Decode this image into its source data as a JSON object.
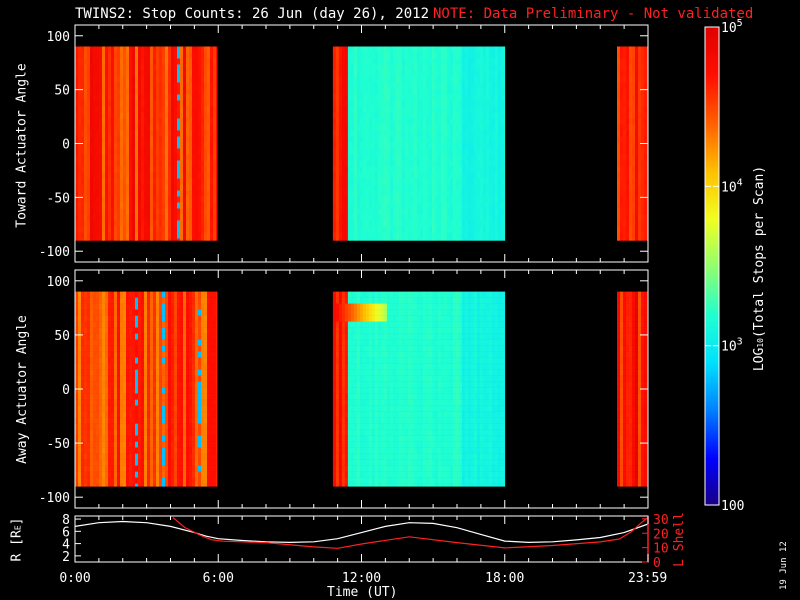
{
  "title": {
    "main": "TWINS2: Stop Counts: 26 Jun (day  26), 2012",
    "note": "NOTE: Data Preliminary - Not validated",
    "note_color": "#ff2020"
  },
  "date_stamp": "19 Jun 12",
  "colors": {
    "background": "#000000",
    "axes": "#ffffff",
    "lshell": "#ff2020",
    "r_line": "#ffffff"
  },
  "chart_data": [
    {
      "type": "heatmap",
      "name": "toward",
      "ylabel": "Toward Actuator Angle",
      "ylim": [
        -110,
        110
      ],
      "yticks": [
        100,
        50,
        0,
        -50,
        -100
      ],
      "data_ylim": [
        -90,
        90
      ],
      "xlim": [
        0,
        24
      ],
      "gaps": [
        [
          5.95,
          10.8
        ],
        [
          18.0,
          22.7
        ]
      ],
      "segments": [
        {
          "start": 0.0,
          "end": 5.95,
          "level": "high",
          "log_counts_approx": 4.6
        },
        {
          "start": 10.8,
          "end": 18.0,
          "level": "moderate",
          "log_counts_approx": 3.2
        },
        {
          "start": 22.7,
          "end": 24.0,
          "level": "high",
          "log_counts_approx": 4.7
        }
      ]
    },
    {
      "type": "heatmap",
      "name": "away",
      "ylabel": "Away Actuator Angle",
      "ylim": [
        -110,
        110
      ],
      "yticks": [
        100,
        50,
        0,
        -50,
        -100
      ],
      "data_ylim": [
        -90,
        90
      ],
      "xlim": [
        0,
        24
      ],
      "gaps": [
        [
          5.95,
          10.8
        ],
        [
          18.0,
          22.7
        ]
      ],
      "segments": [
        {
          "start": 0.0,
          "end": 5.95,
          "level": "high",
          "log_counts_approx": 4.5
        },
        {
          "start": 10.8,
          "end": 18.0,
          "level": "moderate",
          "log_counts_approx": 3.2
        },
        {
          "start": 22.7,
          "end": 24.0,
          "level": "high",
          "log_counts_approx": 4.7
        }
      ]
    },
    {
      "type": "line",
      "name": "ephemeris",
      "xlabel": "Time (UT)",
      "xlim": [
        0,
        24
      ],
      "xticks": [
        0,
        6,
        12,
        18,
        23.983
      ],
      "xtick_labels": [
        "0:00",
        "6:00",
        "12:00",
        "18:00",
        "23:59"
      ],
      "ylabel_left": "R [RE]",
      "ylabel_left_base": "R [R",
      "ylabel_left_sub": "E",
      "ylabel_left_end": "]",
      "ylim_left": [
        1,
        8.5
      ],
      "yticks_left": [
        2,
        4,
        6,
        8
      ],
      "ylabel_right": "L Shell",
      "ylim_right": [
        0,
        32
      ],
      "yticks_right": [
        0,
        10,
        20,
        30
      ],
      "series": [
        {
          "name": "R",
          "axis": "left",
          "x": [
            0,
            1,
            2,
            3,
            4,
            5,
            5.5,
            6,
            7,
            8,
            9,
            10,
            11,
            12,
            13,
            14,
            15,
            16,
            17,
            18,
            19,
            20,
            21,
            22,
            23,
            24
          ],
          "y": [
            6.8,
            7.4,
            7.6,
            7.4,
            6.8,
            5.8,
            5.2,
            4.8,
            4.5,
            4.3,
            4.2,
            4.3,
            4.8,
            5.8,
            6.8,
            7.4,
            7.3,
            6.6,
            5.5,
            4.4,
            4.2,
            4.3,
            4.6,
            5.0,
            5.8,
            7.2
          ]
        },
        {
          "name": "L Shell",
          "axis": "right",
          "x": [
            4.1,
            4.6,
            5.2,
            5.7,
            6.2,
            8.0,
            10.0,
            11.0,
            12.0,
            14.0,
            16.0,
            18.0,
            20.0,
            22.0,
            22.8,
            23.3,
            23.7,
            24.0
          ],
          "y": [
            31,
            24,
            19,
            15.5,
            14.5,
            13.5,
            10.5,
            9.5,
            12.5,
            17.5,
            13.5,
            9.8,
            11.5,
            14.0,
            16.0,
            21.0,
            27.0,
            31.0
          ]
        }
      ]
    },
    {
      "type": "heatmap",
      "name": "colorbar",
      "label": "LOG10(Total Stops per Scan)",
      "label_pre": "LOG",
      "label_sub": "10",
      "label_post": "(Total Stops per Scan)",
      "scale": "log",
      "range": [
        100,
        100000
      ],
      "tick_labels": [
        "100",
        "10",
        "3",
        "10",
        "4",
        "10",
        "5"
      ],
      "ticks": [
        {
          "value": 100,
          "base": "100",
          "exp": ""
        },
        {
          "value": 1000,
          "base": "10",
          "exp": "3"
        },
        {
          "value": 10000,
          "base": "10",
          "exp": "4"
        },
        {
          "value": 100000,
          "base": "10",
          "exp": "5"
        }
      ],
      "colormap": [
        "#1a0080",
        "#0000ff",
        "#0080ff",
        "#00e0ff",
        "#20ffd0",
        "#90ff70",
        "#f0ff20",
        "#ffc000",
        "#ff6000",
        "#ff1000",
        "#e00000"
      ]
    }
  ]
}
